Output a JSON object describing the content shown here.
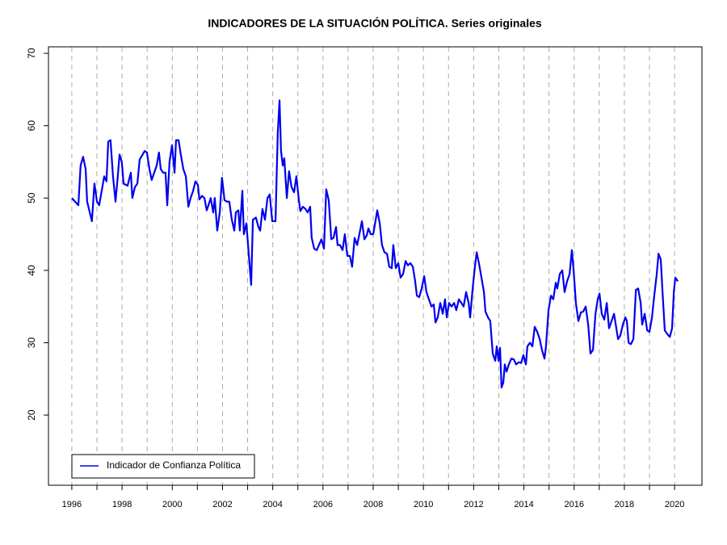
{
  "chart_data": {
    "type": "line",
    "title": "INDICADORES DE LA SITUACIÓN POLÍTICA. Series originales",
    "xlim": [
      1995.07,
      2021.09
    ],
    "ylim": [
      10.3,
      70.9
    ],
    "xticks": [
      1996,
      1998,
      2000,
      2002,
      2004,
      2006,
      2008,
      2010,
      2012,
      2014,
      2016,
      2018,
      2020
    ],
    "xminor_ticks": [
      1997,
      1999,
      2001,
      2003,
      2005,
      2007,
      2009,
      2011,
      2013,
      2015,
      2017,
      2019
    ],
    "yticks": [
      20,
      30,
      40,
      50,
      60,
      70
    ],
    "grid": true,
    "legend": "bottom-left",
    "x": [
      1996.0,
      1996.26,
      1996.35,
      1996.45,
      1996.55,
      1996.61,
      1996.8,
      1996.9,
      1997.0,
      1997.09,
      1997.19,
      1997.29,
      1997.38,
      1997.45,
      1997.54,
      1997.64,
      1997.74,
      1997.83,
      1997.9,
      1997.99,
      1998.06,
      1998.22,
      1998.35,
      1998.41,
      1998.51,
      1998.61,
      1998.7,
      1998.9,
      1998.99,
      1999.09,
      1999.18,
      1999.28,
      1999.38,
      1999.47,
      1999.54,
      1999.64,
      1999.73,
      1999.8,
      1999.89,
      1999.99,
      2000.09,
      2000.15,
      2000.25,
      2000.34,
      2000.44,
      2000.54,
      2000.64,
      2000.73,
      2000.83,
      2000.92,
      2001.02,
      2001.08,
      2001.18,
      2001.28,
      2001.37,
      2001.44,
      2001.53,
      2001.63,
      2001.69,
      2001.79,
      2001.89,
      2001.98,
      2002.08,
      2002.18,
      2002.27,
      2002.37,
      2002.47,
      2002.53,
      2002.63,
      2002.69,
      2002.79,
      2002.85,
      2002.95,
      2003.05,
      2003.14,
      2003.21,
      2003.33,
      2003.43,
      2003.5,
      2003.59,
      2003.69,
      2003.79,
      2003.88,
      2003.98,
      2004.11,
      2004.2,
      2004.27,
      2004.33,
      2004.4,
      2004.46,
      2004.56,
      2004.65,
      2004.75,
      2004.85,
      2004.94,
      2005.04,
      2005.1,
      2005.2,
      2005.3,
      2005.39,
      2005.49,
      2005.55,
      2005.65,
      2005.75,
      2005.84,
      2005.94,
      2006.04,
      2006.13,
      2006.23,
      2006.33,
      2006.42,
      2006.52,
      2006.58,
      2006.68,
      2006.78,
      2006.87,
      2006.97,
      2007.07,
      2007.16,
      2007.26,
      2007.36,
      2007.45,
      2007.55,
      2007.65,
      2007.74,
      2007.81,
      2007.9,
      2008.0,
      2008.1,
      2008.16,
      2008.26,
      2008.35,
      2008.45,
      2008.55,
      2008.64,
      2008.74,
      2008.8,
      2008.9,
      2009.0,
      2009.09,
      2009.19,
      2009.29,
      2009.38,
      2009.48,
      2009.58,
      2009.67,
      2009.74,
      2009.83,
      2009.93,
      2010.03,
      2010.12,
      2010.22,
      2010.32,
      2010.41,
      2010.48,
      2010.57,
      2010.67,
      2010.77,
      2010.86,
      2010.93,
      2011.02,
      2011.12,
      2011.22,
      2011.31,
      2011.41,
      2011.51,
      2011.6,
      2011.7,
      2011.8,
      2011.86,
      2011.96,
      2012.05,
      2012.12,
      2012.21,
      2012.31,
      2012.41,
      2012.47,
      2012.57,
      2012.66,
      2012.76,
      2012.86,
      2012.92,
      2012.99,
      2013.05,
      2013.11,
      2013.18,
      2013.24,
      2013.31,
      2013.4,
      2013.5,
      2013.6,
      2013.69,
      2013.79,
      2013.89,
      2013.98,
      2014.08,
      2014.14,
      2014.24,
      2014.34,
      2014.43,
      2014.53,
      2014.63,
      2014.72,
      2014.82,
      2014.88,
      2014.98,
      2015.08,
      2015.17,
      2015.27,
      2015.33,
      2015.43,
      2015.53,
      2015.62,
      2015.72,
      2015.82,
      2015.91,
      2015.98,
      2016.07,
      2016.17,
      2016.27,
      2016.36,
      2016.46,
      2016.56,
      2016.65,
      2016.75,
      2016.85,
      2016.94,
      2017.01,
      2017.1,
      2017.2,
      2017.3,
      2017.39,
      2017.49,
      2017.59,
      2017.68,
      2017.75,
      2017.84,
      2017.94,
      2018.04,
      2018.1,
      2018.17,
      2018.26,
      2018.36,
      2018.46,
      2018.55,
      2018.65,
      2018.71,
      2018.81,
      2018.91,
      2019.0,
      2019.1,
      2019.19,
      2019.29,
      2019.36,
      2019.45,
      2019.52,
      2019.61,
      2019.71,
      2019.81,
      2019.9,
      2019.97,
      2020.03,
      2020.13
    ],
    "series": [
      {
        "name": "Indicador de Confianza Política",
        "color": "#0000ee",
        "values": [
          50,
          49,
          54.5,
          55.7,
          54,
          49.5,
          46.8,
          52,
          49.5,
          49,
          51,
          53,
          52.3,
          57.8,
          58,
          53,
          49.5,
          53,
          56,
          55,
          52,
          51.7,
          53.5,
          50,
          51.5,
          52,
          55.3,
          56.5,
          56.3,
          54,
          52.5,
          53.5,
          54.5,
          56.3,
          54,
          53.5,
          53.5,
          49,
          55,
          57.3,
          53.5,
          58,
          58,
          56,
          54,
          53,
          48.8,
          50,
          51,
          52.3,
          51.8,
          49.8,
          50.3,
          50,
          48.3,
          49,
          50,
          48,
          50,
          45.5,
          48,
          52.8,
          49.7,
          49.5,
          49.5,
          47,
          45.5,
          48,
          48.3,
          45.5,
          51,
          45,
          46.5,
          42,
          38,
          47,
          47.3,
          46,
          45.5,
          48.5,
          47,
          50,
          50.5,
          46.8,
          46.8,
          59,
          63.5,
          56.5,
          54.5,
          55.5,
          50,
          53.7,
          51.5,
          50.8,
          53,
          49.7,
          48.2,
          48.8,
          48.5,
          48,
          48.8,
          44.5,
          43,
          42.8,
          43.5,
          44.3,
          43,
          51.2,
          49.7,
          44.3,
          44.5,
          46,
          43.5,
          43.5,
          42.8,
          45,
          42,
          42,
          40.5,
          44.5,
          43.5,
          45,
          46.8,
          44.3,
          44.8,
          45.8,
          45,
          45,
          47,
          48.3,
          46.5,
          43.5,
          42.5,
          42.3,
          40.5,
          40.3,
          43.5,
          40.3,
          41,
          39,
          39.5,
          41.3,
          40.7,
          41,
          40.5,
          38.5,
          36.5,
          36.3,
          37.5,
          39.2,
          37,
          36,
          35,
          35.3,
          32.8,
          33.5,
          35.5,
          34,
          36,
          33.5,
          35.5,
          35,
          35.5,
          34.5,
          36,
          35.5,
          35,
          37,
          35.5,
          33.5,
          37.5,
          40.5,
          42.5,
          41,
          39,
          37,
          34.3,
          33.5,
          33,
          28.5,
          27.5,
          29.5,
          27.5,
          29.3,
          23.8,
          24.5,
          27,
          26,
          27,
          27.8,
          27.7,
          27,
          27.3,
          27.2,
          28.3,
          27,
          29.5,
          30,
          29.5,
          32.2,
          31.5,
          30.5,
          29,
          27.8,
          29.5,
          34.5,
          36.5,
          36,
          38.3,
          37.5,
          39.5,
          40,
          37,
          38.5,
          39.5,
          42.8,
          40,
          35.5,
          33,
          34.2,
          34.3,
          35,
          32.5,
          28.5,
          29,
          34,
          36,
          36.8,
          34,
          33.2,
          35.5,
          32,
          33,
          34,
          32,
          30.5,
          31,
          32.5,
          33.5,
          33,
          30,
          29.8,
          30.5,
          37.3,
          37.5,
          35.5,
          32.5,
          34,
          31.7,
          31.5,
          33.5,
          36.5,
          39.5,
          42.3,
          41.5,
          37,
          31.7,
          31.2,
          30.8,
          32,
          37,
          39,
          38.5
        ]
      }
    ]
  }
}
